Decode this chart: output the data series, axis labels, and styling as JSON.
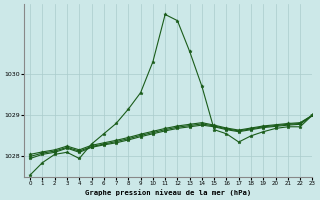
{
  "xlabel": "Graphe pression niveau de la mer (hPa)",
  "xlim": [
    -0.5,
    23
  ],
  "ylim": [
    1027.5,
    1031.7
  ],
  "yticks": [
    1028,
    1029,
    1030
  ],
  "xticks": [
    0,
    1,
    2,
    3,
    4,
    5,
    6,
    7,
    8,
    9,
    10,
    11,
    12,
    13,
    14,
    15,
    16,
    17,
    18,
    19,
    20,
    21,
    22,
    23
  ],
  "background_color": "#cce8e8",
  "grid_color": "#aacccc",
  "line_color": "#1a5c1a",
  "series_main": [
    1027.55,
    1027.85,
    1028.05,
    1028.1,
    1027.95,
    1028.3,
    1028.55,
    1028.8,
    1029.15,
    1029.55,
    1030.3,
    1031.45,
    1031.3,
    1030.55,
    1029.7,
    1028.65,
    1028.55,
    1028.35,
    1028.5,
    1028.6,
    1028.68,
    1028.72,
    1028.72,
    1029.0
  ],
  "series_flat": [
    [
      1027.95,
      1028.05,
      1028.1,
      1028.2,
      1028.1,
      1028.22,
      1028.28,
      1028.33,
      1028.4,
      1028.48,
      1028.55,
      1028.62,
      1028.68,
      1028.72,
      1028.76,
      1028.72,
      1028.65,
      1028.6,
      1028.65,
      1028.7,
      1028.73,
      1028.76,
      1028.78,
      1029.0
    ],
    [
      1028.0,
      1028.08,
      1028.13,
      1028.22,
      1028.13,
      1028.24,
      1028.3,
      1028.36,
      1028.43,
      1028.51,
      1028.58,
      1028.65,
      1028.71,
      1028.75,
      1028.79,
      1028.74,
      1028.67,
      1028.62,
      1028.67,
      1028.72,
      1028.75,
      1028.78,
      1028.8,
      1029.0
    ],
    [
      1028.05,
      1028.11,
      1028.16,
      1028.25,
      1028.16,
      1028.27,
      1028.33,
      1028.39,
      1028.46,
      1028.54,
      1028.61,
      1028.68,
      1028.74,
      1028.78,
      1028.82,
      1028.76,
      1028.69,
      1028.64,
      1028.69,
      1028.74,
      1028.77,
      1028.8,
      1028.82,
      1029.0
    ]
  ],
  "marker": "*",
  "markersize": 2.5,
  "linewidth": 0.8
}
